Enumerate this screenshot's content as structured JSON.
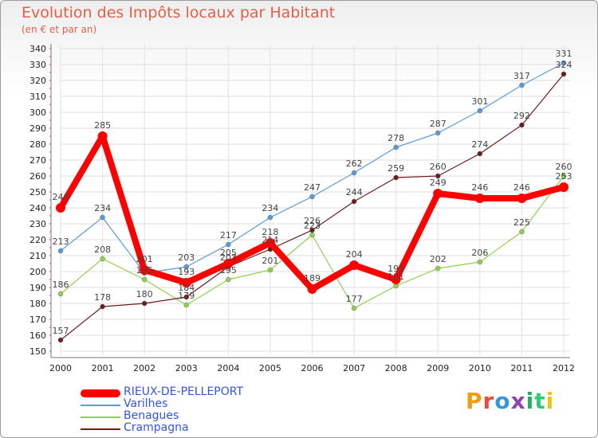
{
  "title": "Evolution des Impôts locaux par Habitant",
  "subtitle": "(en € et par an)",
  "logo": "Proxiti",
  "chart_data": {
    "type": "line",
    "title": "Evolution des Impôts locaux par Habitant",
    "subtitle": "(en € et par an)",
    "xlabel": "",
    "ylabel": "",
    "categories": [
      "2000",
      "2001",
      "2002",
      "2003",
      "2004",
      "2005",
      "2006",
      "2007",
      "2008",
      "2009",
      "2010",
      "2011",
      "2012"
    ],
    "ylim": [
      150,
      340
    ],
    "yticks": [
      150,
      160,
      170,
      180,
      190,
      200,
      210,
      220,
      230,
      240,
      250,
      260,
      270,
      280,
      290,
      300,
      310,
      320,
      330,
      340
    ],
    "grid": true,
    "legend_position": "bottom-left",
    "series": [
      {
        "name": "Varilhes",
        "color": "#5b9bd5",
        "values": [
          213,
          234,
          199,
          203,
          217,
          234,
          247,
          262,
          278,
          287,
          301,
          317,
          331
        ],
        "labels": [
          "213",
          "234",
          "",
          "203",
          "217",
          "234",
          "247",
          "262",
          "278",
          "287",
          "301",
          "317",
          "331"
        ]
      },
      {
        "name": "Benagues",
        "color": "#8fd14f",
        "values": [
          186,
          208,
          195,
          179,
          195,
          201,
          223,
          177,
          191,
          202,
          206,
          225,
          260
        ],
        "labels": [
          "186",
          "208",
          "195",
          "179",
          "195",
          "201",
          "223",
          "177",
          "191",
          "202",
          "206",
          "225",
          "260"
        ]
      },
      {
        "name": "Crampagna",
        "color": "#6e1c1c",
        "values": [
          157,
          178,
          180,
          184,
          203,
          214,
          226,
          244,
          259,
          260,
          274,
          292,
          324
        ],
        "labels": [
          "157",
          "178",
          "180",
          "184",
          "203",
          "214",
          "226",
          "244",
          "259",
          "260",
          "274",
          "292",
          "324"
        ]
      },
      {
        "name": "RIEUX-DE-PELLEPORT",
        "color": "#ff0000",
        "values": [
          240,
          285,
          201,
          193,
          205,
          218,
          189,
          204,
          195,
          249,
          246,
          246,
          253
        ],
        "labels": [
          "240",
          "285",
          "201",
          "193",
          "205",
          "218",
          "189",
          "204",
          "195",
          "249",
          "246",
          "246",
          "253"
        ]
      }
    ]
  }
}
